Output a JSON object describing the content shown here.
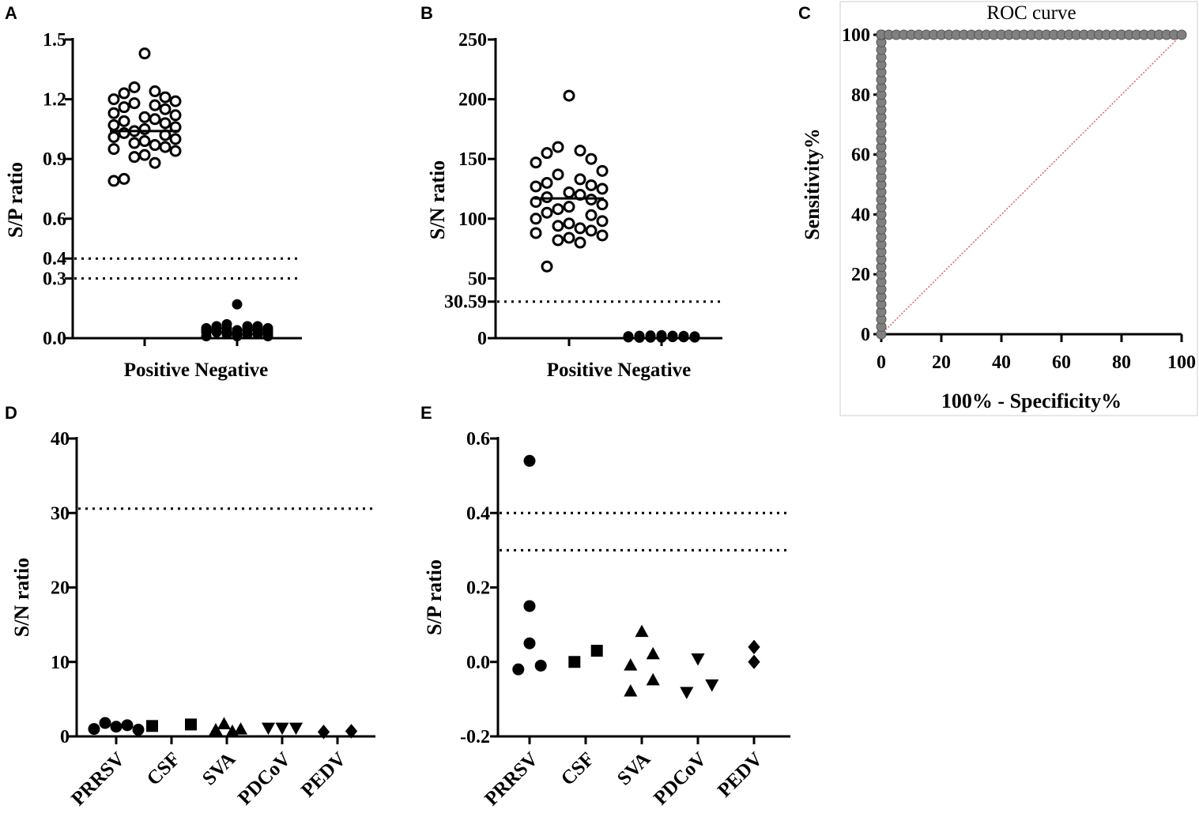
{
  "figure": {
    "panels": [
      "A",
      "B",
      "C",
      "D",
      "E"
    ]
  },
  "chart_data": [
    {
      "id": "A",
      "type": "scatter",
      "title": "",
      "xlabel": "",
      "ylabel": "S/P ratio",
      "ylim": [
        0,
        1.5
      ],
      "yticks": [
        "0.0",
        "0.3",
        "0.4",
        "0.6",
        "0.9",
        "1.2",
        "1.5"
      ],
      "categories": [
        "Positive",
        "Negative"
      ],
      "cutoffs": [
        0.4,
        0.3
      ],
      "series": [
        {
          "name": "Positive",
          "marker": "open-circle",
          "mean": 1.04,
          "values": [
            1.43,
            1.26,
            1.24,
            1.23,
            1.21,
            1.2,
            1.19,
            1.18,
            1.17,
            1.16,
            1.15,
            1.13,
            1.12,
            1.11,
            1.1,
            1.09,
            1.08,
            1.07,
            1.06,
            1.05,
            1.04,
            1.03,
            1.02,
            1.01,
            1.0,
            0.99,
            0.98,
            0.97,
            0.96,
            0.95,
            0.94,
            0.92,
            0.91,
            0.88,
            0.8,
            0.79
          ]
        },
        {
          "name": "Negative",
          "marker": "filled-circle",
          "values": [
            0.17,
            0.07,
            0.06,
            0.06,
            0.06,
            0.05,
            0.05,
            0.05,
            0.05,
            0.05,
            0.05,
            0.04,
            0.04,
            0.04,
            0.04,
            0.04,
            0.04,
            0.04,
            0.03,
            0.03,
            0.03,
            0.03,
            0.03,
            0.03,
            0.02,
            0.02,
            0.02,
            0.02,
            0.02,
            0.01,
            0.01,
            0.01
          ]
        }
      ]
    },
    {
      "id": "B",
      "type": "scatter",
      "title": "",
      "xlabel": "",
      "ylabel": "S/N ratio",
      "ylim": [
        0,
        250
      ],
      "yticks": [
        "0",
        "30.59",
        "50",
        "100",
        "150",
        "200",
        "250"
      ],
      "categories": [
        "Positive",
        "Negative"
      ],
      "cutoffs": [
        30.59
      ],
      "series": [
        {
          "name": "Positive",
          "marker": "open-circle",
          "mean": 117,
          "values": [
            203,
            160,
            157,
            155,
            150,
            147,
            140,
            137,
            133,
            130,
            128,
            127,
            125,
            122,
            120,
            118,
            116,
            114,
            112,
            110,
            108,
            105,
            103,
            100,
            98,
            96,
            94,
            92,
            90,
            88,
            86,
            84,
            82,
            80,
            60
          ]
        },
        {
          "name": "Negative",
          "marker": "filled-circle",
          "values": [
            2.5,
            2.2,
            2,
            2,
            1.8,
            1.6,
            1.5,
            1.4,
            1.3,
            1.2,
            1.1,
            1,
            1,
            0.9,
            0.9,
            0.8,
            0.8,
            0.7,
            0.6,
            0.5,
            0.5,
            0.4
          ]
        }
      ]
    },
    {
      "id": "C",
      "type": "line",
      "title": "ROC curve",
      "xlabel": "100% - Specificity%",
      "ylabel": "Sensitivity%",
      "xlim": [
        0,
        100
      ],
      "ylim": [
        0,
        100
      ],
      "xticks": [
        "0",
        "20",
        "40",
        "60",
        "80",
        "100"
      ],
      "yticks": [
        "0",
        "20",
        "40",
        "60",
        "80",
        "100"
      ],
      "series": [
        {
          "name": "ROC",
          "color": "#808080",
          "x": [
            0,
            0,
            0,
            0,
            0,
            0,
            0,
            0,
            0,
            0,
            0,
            0,
            0,
            0,
            0,
            0,
            0,
            0,
            0,
            0,
            0,
            0,
            0,
            0,
            0,
            0,
            0,
            0,
            0,
            0,
            0,
            0,
            0,
            0,
            0,
            0,
            0,
            0,
            0,
            0,
            0,
            0,
            0,
            0,
            0,
            0,
            0,
            0,
            0,
            0,
            0,
            0,
            0,
            0,
            0,
            0,
            0,
            0,
            0,
            0,
            0,
            0,
            0,
            0,
            0,
            0,
            0,
            0,
            0,
            0,
            0,
            0,
            0,
            0,
            0,
            0,
            0,
            0,
            0,
            0,
            0,
            2.5,
            5,
            7.5,
            10,
            12.5,
            15,
            17.5,
            20,
            22.5,
            25,
            27.5,
            30,
            32.5,
            35,
            37.5,
            40,
            42.5,
            45,
            47.5,
            50,
            52.5,
            55,
            57.5,
            60,
            62.5,
            65,
            67.5,
            70,
            72.5,
            75,
            77.5,
            80,
            82.5,
            85,
            87.5,
            90,
            92.5,
            95,
            97.5,
            100
          ],
          "y": [
            0,
            2.5,
            5,
            7.5,
            10,
            12.5,
            15,
            17.5,
            20,
            22.5,
            25,
            27.5,
            30,
            32.5,
            35,
            37.5,
            40,
            42.5,
            45,
            47.5,
            50,
            52.5,
            55,
            57.5,
            60,
            62.5,
            65,
            67.5,
            70,
            72.5,
            75,
            77.5,
            80,
            82.5,
            85,
            87.5,
            90,
            92.5,
            95,
            97.5,
            100,
            100,
            100,
            100,
            100,
            100,
            100,
            100,
            100,
            100,
            100,
            100,
            100,
            100,
            100,
            100,
            100,
            100,
            100,
            100,
            100,
            100,
            100,
            100,
            100,
            100,
            100,
            100,
            100,
            100,
            100,
            100,
            100,
            100,
            100,
            100,
            100,
            100,
            100,
            100,
            100,
            100,
            100,
            100,
            100,
            100,
            100,
            100,
            100,
            100,
            100,
            100,
            100,
            100,
            100,
            100,
            100,
            100,
            100,
            100,
            100,
            100,
            100,
            100,
            100,
            100,
            100,
            100,
            100,
            100,
            100,
            100,
            100,
            100,
            100,
            100,
            100,
            100,
            100,
            100,
            100
          ]
        },
        {
          "name": "Reference",
          "color": "#e06060",
          "x": [
            0,
            100
          ],
          "y": [
            0,
            100
          ]
        }
      ]
    },
    {
      "id": "D",
      "type": "scatter",
      "title": "",
      "xlabel": "",
      "ylabel": "S/N ratio",
      "ylim": [
        0,
        40
      ],
      "yticks": [
        "0",
        "10",
        "20",
        "30",
        "40"
      ],
      "categories": [
        "PRRSV",
        "CSF",
        "SVA",
        "PDCoV",
        "PEDV"
      ],
      "cutoffs": [
        30.59
      ],
      "series": [
        {
          "name": "PRRSV",
          "marker": "circle",
          "points": [
            {
              "x": -0.4,
              "y": 1.0
            },
            {
              "x": -0.2,
              "y": 1.8
            },
            {
              "x": 0.0,
              "y": 1.3
            },
            {
              "x": 0.2,
              "y": 1.5
            },
            {
              "x": 0.4,
              "y": 0.9
            }
          ]
        },
        {
          "name": "CSF",
          "marker": "square",
          "points": [
            {
              "x": 0.65,
              "y": 1.4
            },
            {
              "x": 1.35,
              "y": 1.6
            }
          ]
        },
        {
          "name": "SVA",
          "marker": "triangle-up",
          "points": [
            {
              "x": 1.8,
              "y": 0.8
            },
            {
              "x": 1.95,
              "y": 1.6
            },
            {
              "x": 2.1,
              "y": 0.6
            },
            {
              "x": 2.25,
              "y": 0.9
            }
          ]
        },
        {
          "name": "PDCoV",
          "marker": "triangle-down",
          "points": [
            {
              "x": 2.75,
              "y": 1.2
            },
            {
              "x": 3.0,
              "y": 1.2
            },
            {
              "x": 3.25,
              "y": 1.2
            }
          ]
        },
        {
          "name": "PEDV",
          "marker": "diamond",
          "points": [
            {
              "x": 3.75,
              "y": 0.6
            },
            {
              "x": 4.25,
              "y": 0.7
            }
          ]
        }
      ]
    },
    {
      "id": "E",
      "type": "scatter",
      "title": "",
      "xlabel": "",
      "ylabel": "S/P ratio",
      "ylim": [
        -0.2,
        0.6
      ],
      "yticks": [
        "-0.2",
        "0.0",
        "0.2",
        "0.4",
        "0.6"
      ],
      "categories": [
        "PRRSV",
        "CSF",
        "SVA",
        "PDCoV",
        "PEDV"
      ],
      "cutoffs": [
        0.4,
        0.3
      ],
      "series": [
        {
          "name": "PRRSV",
          "marker": "circle",
          "points": [
            {
              "x": -0.2,
              "y": -0.02
            },
            {
              "x": 0.0,
              "y": 0.54
            },
            {
              "x": 0.0,
              "y": 0.15
            },
            {
              "x": 0.0,
              "y": 0.05
            },
            {
              "x": 0.2,
              "y": -0.01
            }
          ]
        },
        {
          "name": "CSF",
          "marker": "square",
          "points": [
            {
              "x": 0.8,
              "y": 0.0
            },
            {
              "x": 1.2,
              "y": 0.03
            }
          ]
        },
        {
          "name": "SVA",
          "marker": "triangle-up",
          "points": [
            {
              "x": 1.8,
              "y": -0.01
            },
            {
              "x": 1.8,
              "y": -0.08
            },
            {
              "x": 2.0,
              "y": 0.08
            },
            {
              "x": 2.2,
              "y": 0.02
            },
            {
              "x": 2.2,
              "y": -0.05
            }
          ]
        },
        {
          "name": "PDCoV",
          "marker": "triangle-down",
          "points": [
            {
              "x": 2.8,
              "y": -0.08
            },
            {
              "x": 3.0,
              "y": 0.01
            },
            {
              "x": 3.25,
              "y": -0.06
            }
          ]
        },
        {
          "name": "PEDV",
          "marker": "diamond",
          "points": [
            {
              "x": 4.0,
              "y": 0.04
            },
            {
              "x": 4.0,
              "y": 0.0
            }
          ]
        }
      ]
    }
  ]
}
